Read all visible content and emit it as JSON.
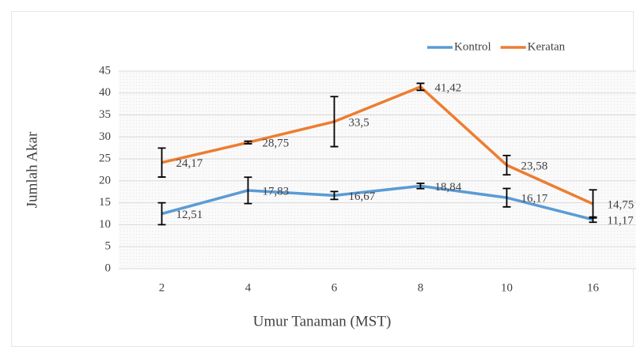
{
  "chart_data": {
    "type": "line",
    "x_label": "Umur Tanaman (MST)",
    "y_label": "Jumlah Akar",
    "categories": [
      "2",
      "4",
      "6",
      "8",
      "10",
      "16"
    ],
    "series": [
      {
        "name": "Kontrol",
        "color": "#5b9bd5",
        "values": [
          12.51,
          17.83,
          16.67,
          18.84,
          16.17,
          11.17
        ],
        "value_labels": [
          "12,51",
          "17,83",
          "16,67",
          "18,84",
          "16,17",
          "11,17"
        ],
        "errors": [
          2.5,
          3,
          0.9,
          0.6,
          2.1,
          0.6
        ]
      },
      {
        "name": "Keratan",
        "color": "#ed7d31",
        "values": [
          24.17,
          28.75,
          33.5,
          41.42,
          23.58,
          14.75
        ],
        "value_labels": [
          "24,17",
          "28,75",
          "33,5",
          "41,42",
          "23,58",
          "14,75"
        ],
        "errors": [
          3.3,
          0.3,
          5.7,
          0.8,
          2.2,
          3.2
        ]
      }
    ],
    "ylim": [
      0,
      45
    ],
    "yticks": [
      0,
      5,
      10,
      15,
      20,
      25,
      30,
      35,
      40,
      45
    ],
    "grid": true,
    "legend": "top-right"
  }
}
